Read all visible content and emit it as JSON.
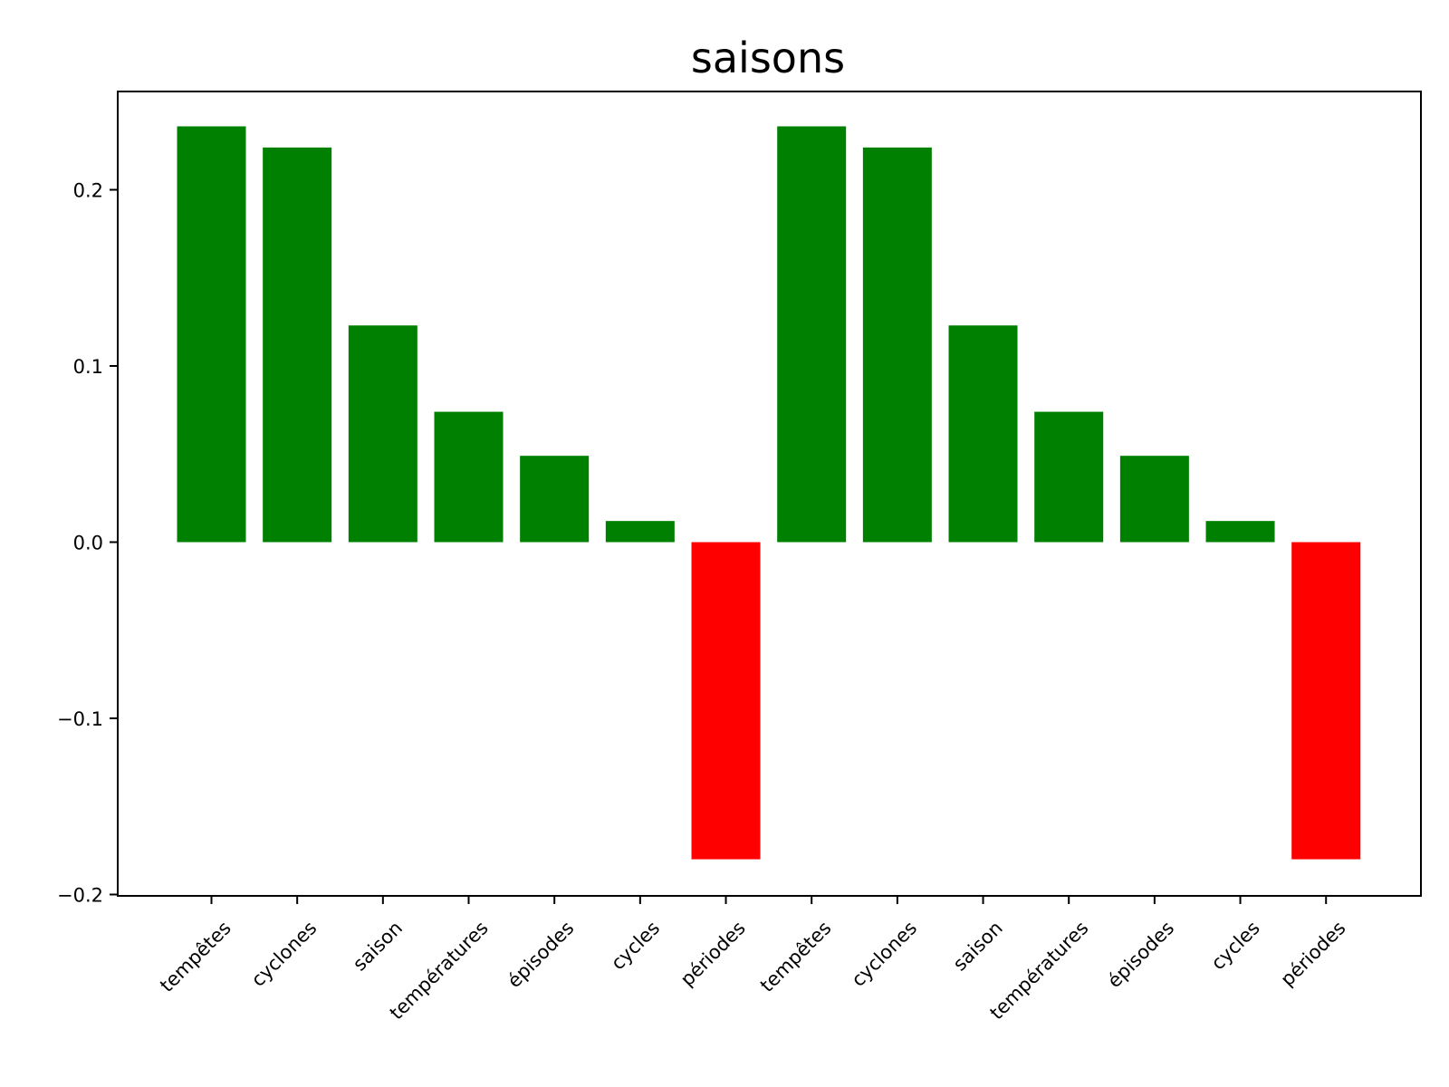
{
  "chart_data": {
    "type": "bar",
    "title": "saisons",
    "xlabel": "",
    "ylabel": "",
    "categories": [
      "tempêtes",
      "cyclones",
      "saison",
      "températures",
      "épisodes",
      "cycles",
      "périodes",
      "tempêtes",
      "cyclones",
      "saison",
      "températures",
      "épisodes",
      "cycles",
      "périodes"
    ],
    "values": [
      0.236,
      0.224,
      0.123,
      0.074,
      0.049,
      0.012,
      -0.18,
      0.236,
      0.224,
      0.123,
      0.074,
      0.049,
      0.012,
      -0.18
    ],
    "ylim": [
      -0.2,
      0.26
    ],
    "yticks": [
      -0.2,
      -0.1,
      0.0,
      0.1,
      0.2
    ],
    "ytick_labels": [
      "−0.2",
      "−0.1",
      "0.0",
      "0.1",
      "0.2"
    ],
    "colors": {
      "positive": "#008000",
      "negative": "#ff0000"
    },
    "grid": false,
    "legend": "none"
  }
}
